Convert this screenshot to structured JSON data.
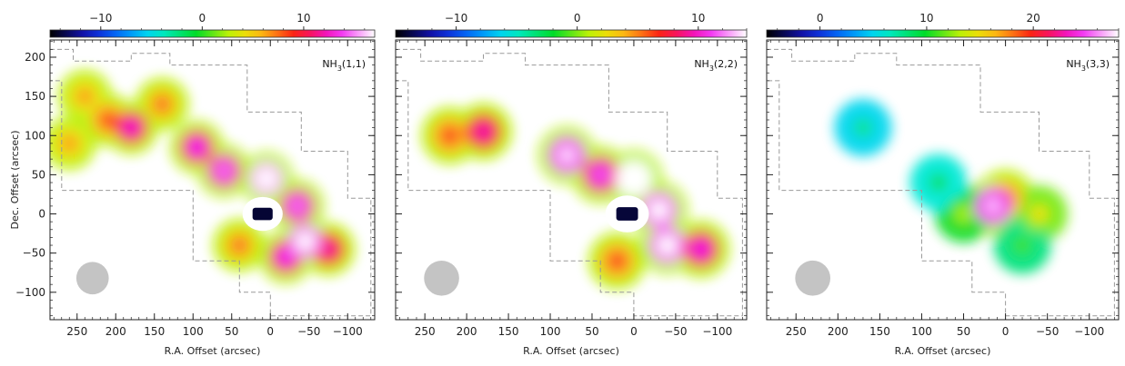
{
  "chart_data": [
    {
      "type": "heatmap",
      "label_main": "NH",
      "label_sub": "3",
      "label_suffix": "(1,1)",
      "colorbar": {
        "range": [
          -15,
          17
        ],
        "ticks": [
          -10,
          0,
          10
        ]
      },
      "xlabel": "R.A. Offset (arcsec)",
      "ylabel": "Dec. Offset (arcsec)",
      "xlim": [
        285,
        -135
      ],
      "ylim": [
        -135,
        222
      ],
      "x_ticks": [
        250,
        200,
        150,
        100,
        50,
        0,
        -50,
        -100
      ],
      "y_ticks": [
        -100,
        -50,
        0,
        50,
        100,
        150,
        200
      ],
      "beam_center": [
        230,
        -82
      ],
      "beam_diameter": 42,
      "blobs": [
        {
          "x": 180,
          "y": 110,
          "v": 10
        },
        {
          "x": 210,
          "y": 120,
          "v": 6
        },
        {
          "x": 240,
          "y": 150,
          "v": 4
        },
        {
          "x": 260,
          "y": 90,
          "v": 4
        },
        {
          "x": 140,
          "y": 140,
          "v": 5
        },
        {
          "x": 95,
          "y": 85,
          "v": 11
        },
        {
          "x": 60,
          "y": 55,
          "v": 12
        },
        {
          "x": 5,
          "y": 45,
          "v": 16
        },
        {
          "x": -35,
          "y": 10,
          "v": 12
        },
        {
          "x": -45,
          "y": -35,
          "v": 15
        },
        {
          "x": -20,
          "y": -55,
          "v": 11
        },
        {
          "x": -75,
          "y": -45,
          "v": 9
        },
        {
          "x": 40,
          "y": -40,
          "v": 5
        }
      ],
      "absorption": {
        "x": 10,
        "y": 0,
        "v": -14
      }
    },
    {
      "type": "heatmap",
      "label_main": "NH",
      "label_sub": "3",
      "label_suffix": "(2,2)",
      "colorbar": {
        "range": [
          -15,
          14
        ],
        "ticks": [
          -10,
          0,
          10
        ]
      },
      "xlabel": "R.A. Offset (arcsec)",
      "ylabel": "",
      "xlim": [
        285,
        -135
      ],
      "ylim": [
        -135,
        222
      ],
      "x_ticks": [
        250,
        200,
        150,
        100,
        50,
        0,
        -50,
        -100
      ],
      "y_ticks": [
        -100,
        -50,
        0,
        50,
        100,
        150,
        200
      ],
      "beam_center": [
        230,
        -82
      ],
      "beam_diameter": 42,
      "blobs": [
        {
          "x": 180,
          "y": 105,
          "v": 7
        },
        {
          "x": 220,
          "y": 100,
          "v": 4
        },
        {
          "x": 80,
          "y": 75,
          "v": 11
        },
        {
          "x": 40,
          "y": 50,
          "v": 9
        },
        {
          "x": 0,
          "y": 45,
          "v": 14
        },
        {
          "x": -30,
          "y": 5,
          "v": 12
        },
        {
          "x": -40,
          "y": -40,
          "v": 12
        },
        {
          "x": -80,
          "y": -45,
          "v": 8
        },
        {
          "x": 20,
          "y": -60,
          "v": 4
        }
      ],
      "absorption": {
        "x": 8,
        "y": 0,
        "v": -14
      }
    },
    {
      "type": "heatmap",
      "label_main": "NH",
      "label_sub": "3",
      "label_suffix": "(3,3)",
      "colorbar": {
        "range": [
          -5,
          28
        ],
        "ticks": [
          0,
          10,
          20
        ]
      },
      "xlabel": "R.A. Offset (arcsec)",
      "ylabel": "",
      "xlim": [
        285,
        -135
      ],
      "ylim": [
        -135,
        222
      ],
      "x_ticks": [
        250,
        200,
        150,
        100,
        50,
        0,
        -50,
        -100
      ],
      "y_ticks": [
        -100,
        -50,
        0,
        50,
        100,
        150,
        200
      ],
      "beam_center": [
        230,
        -82
      ],
      "beam_diameter": 42,
      "blobs": [
        {
          "x": 170,
          "y": 110,
          "v": 5
        },
        {
          "x": 15,
          "y": 10,
          "v": 24
        },
        {
          "x": 0,
          "y": 20,
          "v": 16
        },
        {
          "x": -40,
          "y": 0,
          "v": 12
        },
        {
          "x": 50,
          "y": 0,
          "v": 10
        },
        {
          "x": -20,
          "y": -40,
          "v": 8
        },
        {
          "x": 80,
          "y": 40,
          "v": 6
        }
      ],
      "absorption": null
    }
  ]
}
